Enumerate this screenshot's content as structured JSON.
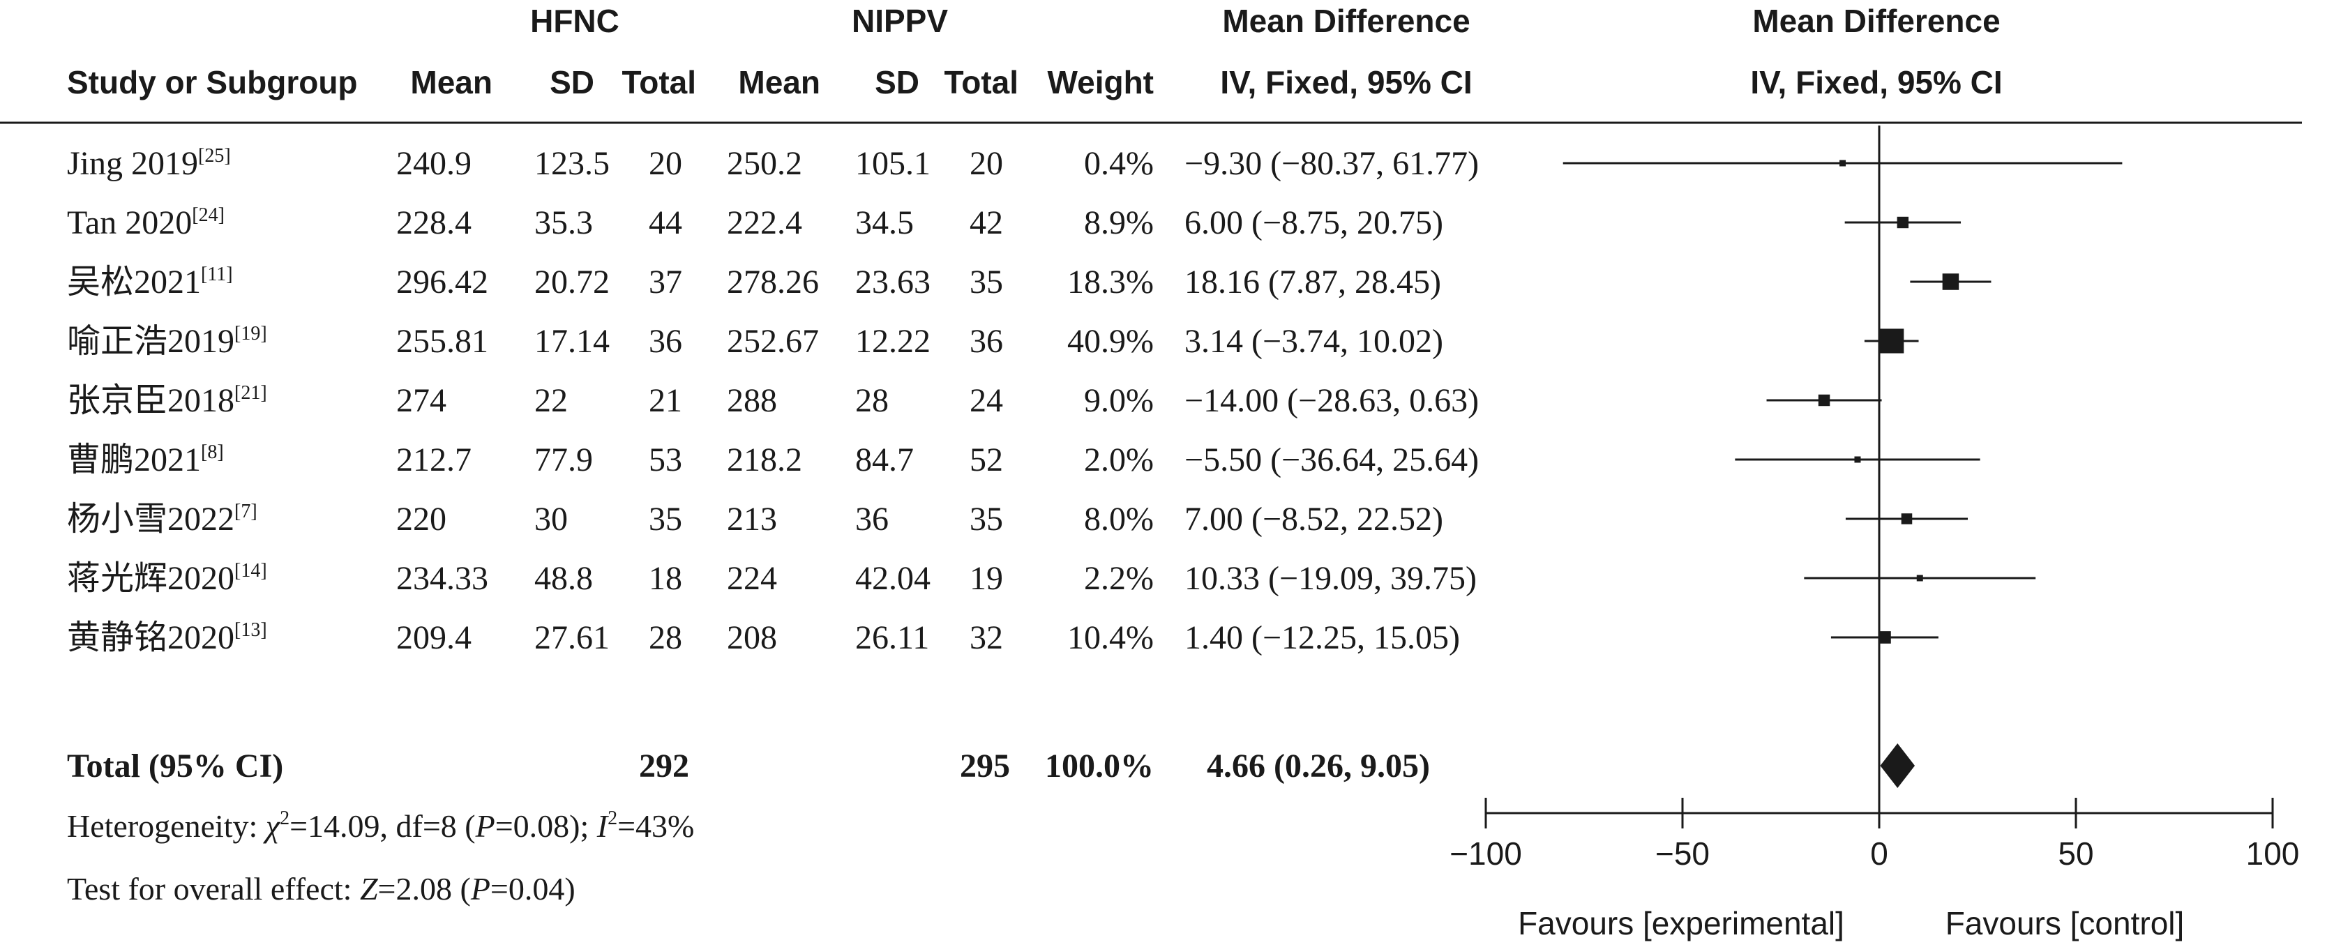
{
  "header": {
    "group_experimental": "HFNC",
    "group_control": "NIPPV",
    "effect_top": "Mean Difference",
    "effect_bottom": "IV, Fixed, 95% CI",
    "plot_top": "Mean Difference",
    "plot_bottom": "IV, Fixed, 95% CI",
    "study_col": "Study or Subgroup",
    "mean_col": "Mean",
    "sd_col": "SD",
    "total_col": "Total",
    "weight_col": "Weight"
  },
  "chart_data": {
    "type": "forest",
    "xlim": [
      -100,
      100
    ],
    "xticks": [
      -100,
      -50,
      0,
      50,
      100
    ],
    "xtick_labels": [
      "−100",
      "−50",
      "0",
      "50",
      "100"
    ],
    "xlabel_left": "Favours [experimental]",
    "xlabel_right": "Favours [control]",
    "studies": [
      {
        "name": "Jing 2019",
        "ref": "[25]",
        "e_mean": "240.9",
        "e_sd": "123.5",
        "e_total": "20",
        "c_mean": "250.2",
        "c_sd": "105.1",
        "c_total": "20",
        "weight": "0.4%",
        "ci_text": "−9.30 (−80.37, 61.77)",
        "md": -9.3,
        "lo": -80.37,
        "hi": 61.77,
        "w": 0.4
      },
      {
        "name": "Tan 2020",
        "ref": "[24]",
        "e_mean": "228.4",
        "e_sd": "35.3",
        "e_total": "44",
        "c_mean": "222.4",
        "c_sd": "34.5",
        "c_total": "42",
        "weight": "8.9%",
        "ci_text": "6.00 (−8.75, 20.75)",
        "md": 6.0,
        "lo": -8.75,
        "hi": 20.75,
        "w": 8.9
      },
      {
        "name": "吴松2021",
        "ref": "[11]",
        "e_mean": "296.42",
        "e_sd": "20.72",
        "e_total": "37",
        "c_mean": "278.26",
        "c_sd": "23.63",
        "c_total": "35",
        "weight": "18.3%",
        "ci_text": "18.16 (7.87, 28.45)",
        "md": 18.16,
        "lo": 7.87,
        "hi": 28.45,
        "w": 18.3
      },
      {
        "name": "喻正浩2019",
        "ref": "[19]",
        "e_mean": "255.81",
        "e_sd": "17.14",
        "e_total": "36",
        "c_mean": "252.67",
        "c_sd": "12.22",
        "c_total": "36",
        "weight": "40.9%",
        "ci_text": "3.14 (−3.74, 10.02)",
        "md": 3.14,
        "lo": -3.74,
        "hi": 10.02,
        "w": 40.9
      },
      {
        "name": "张京臣2018",
        "ref": "[21]",
        "e_mean": "274",
        "e_sd": "22",
        "e_total": "21",
        "c_mean": "288",
        "c_sd": "28",
        "c_total": "24",
        "weight": "9.0%",
        "ci_text": "−14.00 (−28.63, 0.63)",
        "md": -14.0,
        "lo": -28.63,
        "hi": 0.63,
        "w": 9.0
      },
      {
        "name": "曹鹏2021",
        "ref": "[8]",
        "e_mean": "212.7",
        "e_sd": "77.9",
        "e_total": "53",
        "c_mean": "218.2",
        "c_sd": "84.7",
        "c_total": "52",
        "weight": "2.0%",
        "ci_text": "−5.50 (−36.64, 25.64)",
        "md": -5.5,
        "lo": -36.64,
        "hi": 25.64,
        "w": 2.0
      },
      {
        "name": "杨小雪2022",
        "ref": "[7]",
        "e_mean": "220",
        "e_sd": "30",
        "e_total": "35",
        "c_mean": "213",
        "c_sd": "36",
        "c_total": "35",
        "weight": "8.0%",
        "ci_text": "7.00 (−8.52, 22.52)",
        "md": 7.0,
        "lo": -8.52,
        "hi": 22.52,
        "w": 8.0
      },
      {
        "name": "蒋光辉2020",
        "ref": "[14]",
        "e_mean": "234.33",
        "e_sd": "48.8",
        "e_total": "18",
        "c_mean": "224",
        "c_sd": "42.04",
        "c_total": "19",
        "weight": "2.2%",
        "ci_text": "10.33 (−19.09, 39.75)",
        "md": 10.33,
        "lo": -19.09,
        "hi": 39.75,
        "w": 2.2
      },
      {
        "name": "黄静铭2020",
        "ref": "[13]",
        "e_mean": "209.4",
        "e_sd": "27.61",
        "e_total": "28",
        "c_mean": "208",
        "c_sd": "26.11",
        "c_total": "32",
        "weight": "10.4%",
        "ci_text": "1.40 (−12.25, 15.05)",
        "md": 1.4,
        "lo": -12.25,
        "hi": 15.05,
        "w": 10.4
      }
    ],
    "total": {
      "label": "Total (95% CI)",
      "e_total": "292",
      "c_total": "295",
      "weight": "100.0%",
      "ci_text": "4.66 (0.26, 9.05)",
      "md": 4.66,
      "lo": 0.26,
      "hi": 9.05
    }
  },
  "footer": {
    "het_prefix": "Heterogeneity: ",
    "chi_sym": "χ",
    "chi_sup": "2",
    "het_mid": "=14.09, df=8 (",
    "p_sym": "P",
    "het_p": "=0.08); ",
    "i_sym": "I",
    "i_sup": "2",
    "het_end": "=43%",
    "test_prefix": "Test for overall effect: ",
    "z_sym": "Z",
    "test_mid": "=2.08 (",
    "test_p": "=0.04)"
  }
}
